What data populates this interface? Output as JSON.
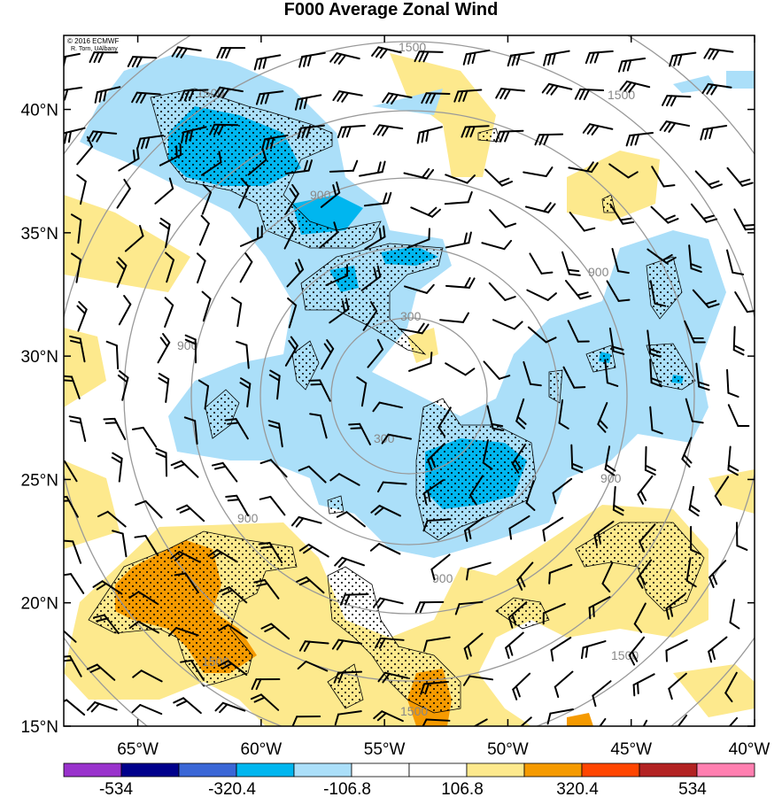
{
  "title": "F000 Average Zonal Wind",
  "credit": {
    "line1": "© 2016 ECMWF",
    "line2": "R. Torn, UAlbany"
  },
  "map": {
    "lon_range": [
      -68,
      -40
    ],
    "lat_range": [
      15,
      43
    ],
    "lat_labels": [
      "15°N",
      "20°N",
      "25°N",
      "30°N",
      "35°N",
      "40°N"
    ],
    "lat_values": [
      15,
      20,
      25,
      30,
      35,
      40
    ],
    "lon_labels": [
      "65°W",
      "60°W",
      "55°W",
      "50°W",
      "45°W",
      "40°W"
    ],
    "lon_values": [
      -65,
      -60,
      -55,
      -50,
      -45,
      -40
    ],
    "range_ring_labels": [
      "300",
      "900",
      "1500"
    ]
  },
  "colorbar": {
    "tick_labels": [
      "-534",
      "-320.4",
      "-106.8",
      "106.8",
      "320.4",
      "534"
    ],
    "colors": [
      "#9932cc",
      "#00008b",
      "#3a66d6",
      "#00b6ef",
      "#abdff9",
      "#ffffff",
      "#ffffff",
      "#fde98d",
      "#f59a00",
      "#ff4500",
      "#b22222",
      "#ff7fb0"
    ]
  }
}
